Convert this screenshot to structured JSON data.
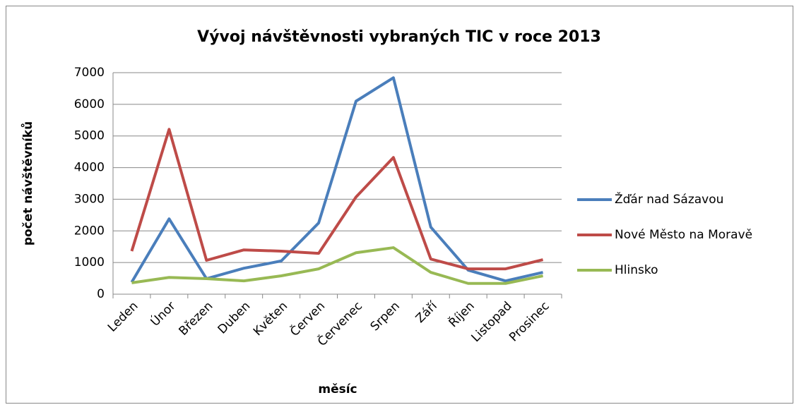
{
  "chart_data": {
    "type": "line",
    "title": "Vývoj návštěvnosti vybraných TIC v roce 2013",
    "x_label": "měsíc",
    "y_label": "počet návštěvníků",
    "categories": [
      "Leden",
      "Únor",
      "Březen",
      "Duben",
      "Květen",
      "Červen",
      "Červenec",
      "Srpen",
      "Září",
      "Říjen",
      "Listopad",
      "Prosinec"
    ],
    "series": [
      {
        "name": "Žďár nad Sázavou",
        "color": "#4a7ebb",
        "values": [
          380,
          2380,
          490,
          820,
          1050,
          2250,
          6100,
          6840,
          2120,
          760,
          420,
          690
        ]
      },
      {
        "name": "Nové Město na Moravě",
        "color": "#be4b48",
        "values": [
          1360,
          5210,
          1070,
          1400,
          1360,
          1290,
          3070,
          4320,
          1110,
          800,
          800,
          1090
        ]
      },
      {
        "name": "Hlinsko",
        "color": "#98b954",
        "values": [
          360,
          530,
          490,
          420,
          580,
          800,
          1310,
          1470,
          690,
          340,
          340,
          580
        ]
      }
    ],
    "ylim": [
      0,
      7000
    ],
    "yticks": [
      0,
      1000,
      2000,
      3000,
      4000,
      5000,
      6000,
      7000
    ],
    "grid": true,
    "legend": "right"
  }
}
